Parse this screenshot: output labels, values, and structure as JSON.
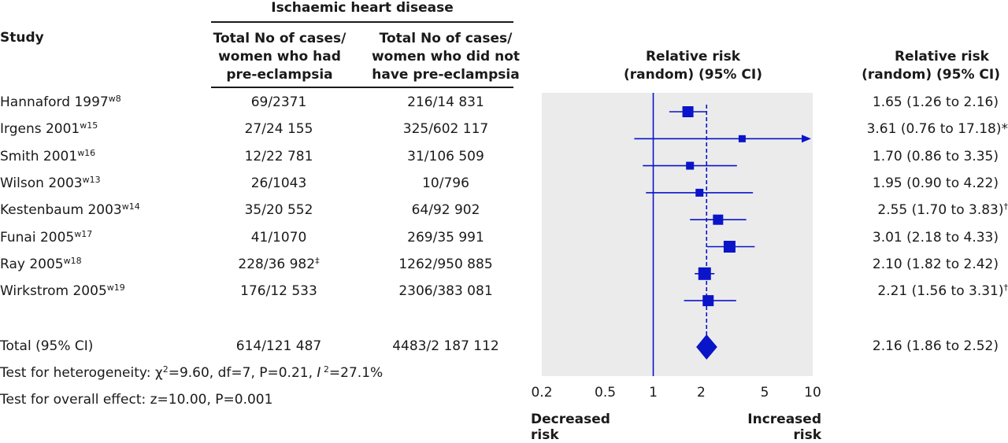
{
  "header": {
    "group_title": "Ischaemic heart disease",
    "study_label": "Study",
    "col_preeclampsia": [
      "Total No of cases/",
      "women who had",
      "pre-eclampsia"
    ],
    "col_no_preeclampsia": [
      "Total No of cases/",
      "women who did not",
      "have pre-eclampsia"
    ],
    "plot_title": [
      "Relative risk",
      "(random) (95% CI)"
    ],
    "rr_title": [
      "Relative risk",
      "(random) (95% CI)"
    ]
  },
  "footer": {
    "total_label": "Total (95% CI)",
    "total_a": "614/121 487",
    "total_b": "4483/2 187 112",
    "total_rr": "2.16 (1.86 to 2.52)",
    "heterogeneity": "Test for heterogeneity: χ²=9.60, df=7, P=0.21, I²=27.1%",
    "heterogeneity_parts": {
      "pre": "Test for heterogeneity: ",
      "chi": "χ",
      "chi_rest": "=9.60, df=7, P=0.21, ",
      "i": "I",
      "i_rest": "=27.1%"
    },
    "overall_effect": "Test for overall effect: z=10.00, P=0.001",
    "decreased": [
      "Decreased",
      "risk"
    ],
    "increased": [
      "Increased",
      "risk"
    ]
  },
  "chart_data": {
    "type": "forest",
    "xscale": "log",
    "xlim": [
      0.2,
      10
    ],
    "xticks": [
      "0.2",
      "0.5",
      "1",
      "2",
      "5",
      "10"
    ],
    "null_line": 1,
    "pooled_line": 2.16,
    "rows": [
      {
        "study": "Hannaford 1997",
        "ref": "w8",
        "a": "69/2371",
        "a_mark": "",
        "b": "216/14 831",
        "rr": 1.65,
        "lo": 1.26,
        "hi": 2.16,
        "label": "1.65 (1.26 to 2.16)",
        "mark": "",
        "weight": 14
      },
      {
        "study": "Irgens 2001",
        "ref": "w15",
        "a": "27/24 155",
        "a_mark": "",
        "b": "325/602 117",
        "rr": 3.61,
        "lo": 0.76,
        "hi": 17.18,
        "label": "3.61 (0.76 to 17.18)",
        "mark": "*",
        "weight": 9,
        "arrow": true
      },
      {
        "study": "Smith 2001",
        "ref": "w16",
        "a": "12/22 781",
        "a_mark": "",
        "b": "31/106 509",
        "rr": 1.7,
        "lo": 0.86,
        "hi": 3.35,
        "label": "1.70 (0.86 to 3.35)",
        "mark": "",
        "weight": 10
      },
      {
        "study": "Wilson 2003",
        "ref": "w13",
        "a": "26/1043",
        "a_mark": "",
        "b": "10/796",
        "rr": 1.95,
        "lo": 0.9,
        "hi": 4.22,
        "label": "1.95 (0.90 to 4.22)",
        "mark": "",
        "weight": 10
      },
      {
        "study": "Kestenbaum 2003",
        "ref": "w14",
        "a": "35/20 552",
        "a_mark": "",
        "b": "64/92 902",
        "rr": 2.55,
        "lo": 1.7,
        "hi": 3.83,
        "label": "2.55 (1.70 to 3.83)",
        "mark": "†",
        "weight": 13
      },
      {
        "study": "Funai 2005",
        "ref": "w17",
        "a": "41/1070",
        "a_mark": "",
        "b": "269/35 991",
        "rr": 3.01,
        "lo": 2.18,
        "hi": 4.33,
        "label": "3.01 (2.18 to 4.33)",
        "mark": "",
        "weight": 15
      },
      {
        "study": "Ray 2005",
        "ref": "w18",
        "a": "228/36 982",
        "a_mark": "‡",
        "b": "1262/950 885",
        "rr": 2.1,
        "lo": 1.82,
        "hi": 2.42,
        "label": "2.10 (1.82 to 2.42)",
        "mark": "",
        "weight": 16
      },
      {
        "study": "Wirkstrom 2005",
        "ref": "w19",
        "a": "176/12 533",
        "a_mark": "",
        "b": "2306/383 081",
        "rr": 2.21,
        "lo": 1.56,
        "hi": 3.31,
        "label": "2.21 (1.56 to 3.31)",
        "mark": "†",
        "weight": 14
      }
    ],
    "total": {
      "rr": 2.16,
      "lo": 1.86,
      "hi": 2.52
    },
    "colors": {
      "marker": "#0a14c8",
      "panel": "#ebebeb",
      "line": "#0a14c8",
      "text": "#1a1a1a"
    }
  }
}
